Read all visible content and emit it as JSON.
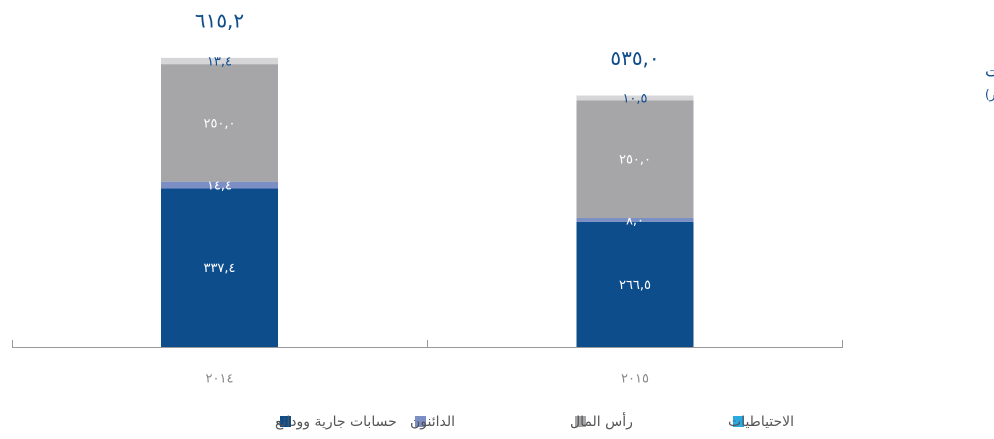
{
  "chart_data": {
    "type": "stacked_bar",
    "title": "المطلوبات",
    "subtitle": "(بالمليار دينار)",
    "categories": [
      "٢٠١٤",
      "٢٠١٥"
    ],
    "series": [
      {
        "name": "حسابات جارية وودائع",
        "color": "#0e4d8c",
        "values": [
          337.4,
          266.5
        ],
        "value_labels": [
          "٣٣٧,٤",
          "٢٦٦,٥"
        ]
      },
      {
        "name": "الدائنون",
        "color": "#7b8fc4",
        "values": [
          14.4,
          8.0
        ],
        "value_labels": [
          "١٤,٤",
          "٨,٠"
        ]
      },
      {
        "name": "رأس المال",
        "color": "#a6a6a8",
        "values": [
          250.0,
          250.0
        ],
        "value_labels": [
          "٢٥٠,٠",
          "٢٥٠,٠"
        ]
      },
      {
        "name": "الاحتياطيات",
        "color": "#d6d6d8",
        "legend_color": "#29abe2",
        "values": [
          13.4,
          10.5
        ],
        "value_labels": [
          "١٣,٤",
          "١٠,٥"
        ]
      }
    ],
    "totals": [
      615.2,
      535.0
    ],
    "total_labels": [
      "٦١٥,٢",
      "٥٣٥,٠"
    ]
  }
}
